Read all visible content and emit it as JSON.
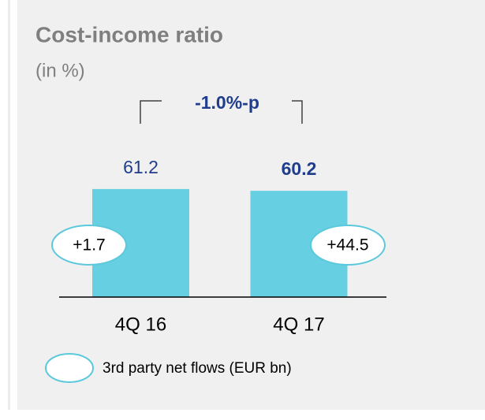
{
  "chart_data": {
    "type": "bar",
    "title": "Cost-income ratio",
    "subtitle": "(in %)",
    "categories": [
      "4Q 16",
      "4Q 17"
    ],
    "values": [
      61.2,
      60.2
    ],
    "color": "#66cfe2",
    "ylim": [
      0,
      100
    ],
    "annotation": "-1.0%-p",
    "net_flows": {
      "name": "3rd party net flows (EUR bn)",
      "values": [
        1.7,
        44.5
      ],
      "value_labels": [
        "+1.7",
        "+44.5"
      ],
      "color": "#5bc8dc"
    }
  }
}
